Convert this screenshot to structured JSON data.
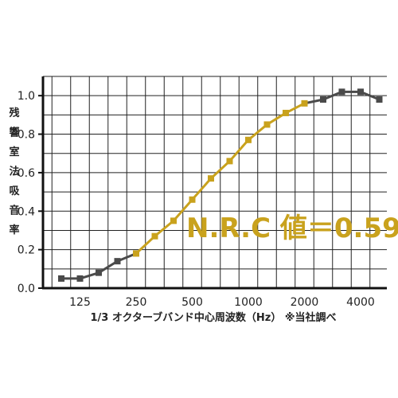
{
  "chart_data": {
    "type": "line",
    "title": "",
    "xlabel": "1/3 オクターブバンド中心周波数（Hz） ※当社調べ",
    "ylabel": "残響室法吸音率",
    "x": [
      100,
      125,
      160,
      200,
      250,
      315,
      400,
      500,
      630,
      800,
      1000,
      1250,
      1600,
      2000,
      2500,
      3150,
      4000,
      5000
    ],
    "x_tick_labels": [
      "125",
      "250",
      "500",
      "1000",
      "2000",
      "4000"
    ],
    "y_ticks": [
      "0.0",
      "0.2",
      "0.4",
      "0.6",
      "0.8",
      "1.0"
    ],
    "ylim": [
      0,
      1.1
    ],
    "series": [
      {
        "values": [
          0.05,
          0.05,
          0.08,
          0.14,
          0.18,
          0.27,
          0.35,
          0.46,
          0.57,
          0.66,
          0.77,
          0.85,
          0.91,
          0.96,
          0.98,
          1.02,
          1.02,
          0.98
        ]
      }
    ],
    "highlight_range": [
      250,
      2000
    ],
    "annotation": "N.R.C 値＝0.59",
    "colors": {
      "normal": "#4a4a4a",
      "highlight": "#c9a21d",
      "grid": "#222222"
    },
    "grid": true
  }
}
